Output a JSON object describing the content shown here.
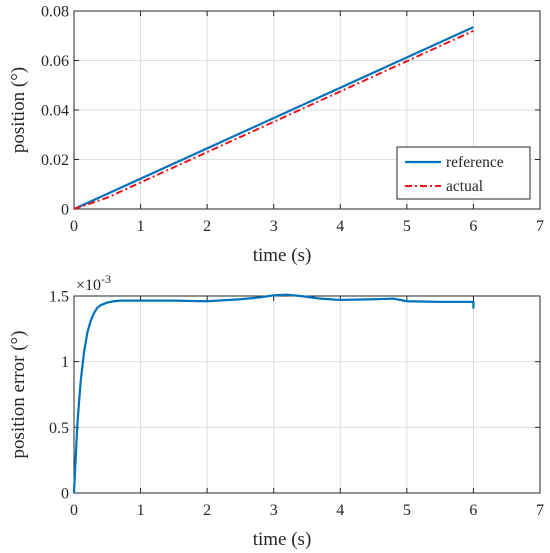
{
  "chart_data": [
    {
      "type": "line",
      "title": "",
      "xlabel": "time (s)",
      "ylabel": "position (°)",
      "xlim": [
        0,
        7
      ],
      "ylim": [
        0,
        0.08
      ],
      "x_ticks": [
        0,
        1,
        2,
        3,
        4,
        5,
        6,
        7
      ],
      "x_tick_labels": [
        "0",
        "1",
        "2",
        "3",
        "4",
        "5",
        "6",
        "7"
      ],
      "y_ticks": [
        0,
        0.02,
        0.04,
        0.06,
        0.08
      ],
      "y_tick_labels": [
        "0",
        "0.02",
        "0.04",
        "0.06",
        "0.08"
      ],
      "grid": true,
      "legend_position": "bottom-right",
      "series": [
        {
          "name": "reference",
          "color": "#0072BD",
          "style": "solid",
          "x": [
            0,
            6
          ],
          "y": [
            0,
            0.0735
          ]
        },
        {
          "name": "actual",
          "color": "#E8141E",
          "style": "dash-dot",
          "x": [
            0,
            0.5,
            6
          ],
          "y": [
            0,
            0.0046,
            0.072
          ]
        }
      ]
    },
    {
      "type": "line",
      "title": "",
      "xlabel": "time (s)",
      "ylabel": "position error (°)",
      "y_multiplier": "×10",
      "y_multiplier_exp": "-3",
      "xlim": [
        0,
        7
      ],
      "ylim": [
        0,
        1.5
      ],
      "x_ticks": [
        0,
        1,
        2,
        3,
        4,
        5,
        6,
        7
      ],
      "x_tick_labels": [
        "0",
        "1",
        "2",
        "3",
        "4",
        "5",
        "6",
        "7"
      ],
      "y_ticks": [
        0,
        0.5,
        1,
        1.5
      ],
      "y_tick_labels": [
        "0",
        "0.5",
        "1",
        "1.5"
      ],
      "grid": true,
      "series": [
        {
          "color": "#0072BD",
          "style": "solid",
          "x": [
            0,
            0.05,
            0.1,
            0.15,
            0.2,
            0.25,
            0.3,
            0.35,
            0.4,
            0.5,
            0.6,
            0.7,
            0.8,
            1.0,
            1.5,
            2.0,
            2.5,
            2.8,
            3.0,
            3.2,
            3.4,
            3.7,
            4.0,
            4.5,
            4.8,
            5.0,
            5.5,
            6.0,
            6.0,
            6.01
          ],
          "y": [
            0,
            0.52,
            0.85,
            1.07,
            1.22,
            1.31,
            1.37,
            1.41,
            1.43,
            1.45,
            1.46,
            1.465,
            1.465,
            1.465,
            1.465,
            1.46,
            1.475,
            1.49,
            1.505,
            1.51,
            1.5,
            1.48,
            1.47,
            1.475,
            1.48,
            1.46,
            1.455,
            1.455,
            1.41,
            1.41
          ]
        }
      ]
    }
  ]
}
